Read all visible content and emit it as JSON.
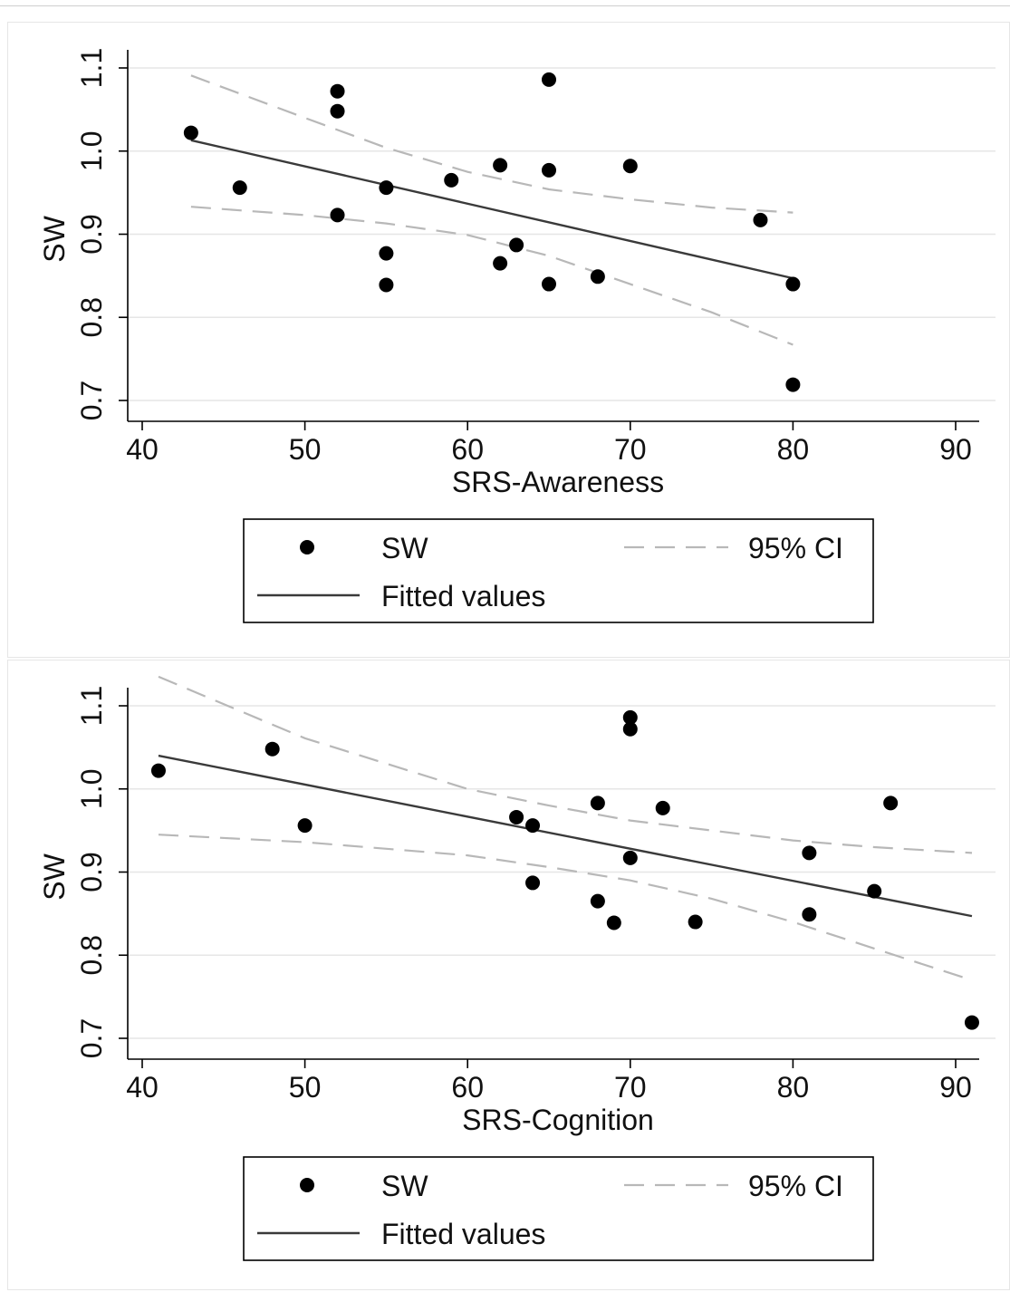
{
  "colors": {
    "points": "#000000",
    "fit_line": "#3a3a3a",
    "ci_line": "#b8b8b8",
    "grid": "#e6e6e6",
    "axis": "#000000",
    "legend_border": "#000000"
  },
  "chart_data": [
    {
      "type": "scatter",
      "title": "",
      "xlabel": "SRS-Awareness",
      "ylabel": "SW",
      "xlim": [
        40,
        90
      ],
      "ylim": [
        0.7,
        1.1
      ],
      "xticks": [
        40,
        50,
        60,
        70,
        80,
        90
      ],
      "yticks": [
        0.7,
        0.8,
        0.9,
        1.0,
        1.1
      ],
      "ytick_labels": [
        "0.7",
        "0.8",
        "0.9",
        "1.0",
        "1.1"
      ],
      "grid": true,
      "legend_placement": "bottom",
      "legend": {
        "points": "SW",
        "ci": "95% CI",
        "fit": "Fitted values"
      },
      "points": [
        {
          "x": 43,
          "y": 1.022
        },
        {
          "x": 46,
          "y": 0.956
        },
        {
          "x": 52,
          "y": 1.072
        },
        {
          "x": 52,
          "y": 1.048
        },
        {
          "x": 52,
          "y": 0.923
        },
        {
          "x": 55,
          "y": 0.956
        },
        {
          "x": 55,
          "y": 0.877
        },
        {
          "x": 55,
          "y": 0.839
        },
        {
          "x": 59,
          "y": 0.965
        },
        {
          "x": 62,
          "y": 0.983
        },
        {
          "x": 62,
          "y": 0.865
        },
        {
          "x": 63,
          "y": 0.887
        },
        {
          "x": 65,
          "y": 1.086
        },
        {
          "x": 65,
          "y": 0.977
        },
        {
          "x": 65,
          "y": 0.84
        },
        {
          "x": 68,
          "y": 0.849
        },
        {
          "x": 70,
          "y": 0.982
        },
        {
          "x": 78,
          "y": 0.917
        },
        {
          "x": 80,
          "y": 0.84
        },
        {
          "x": 80,
          "y": 0.719
        }
      ],
      "fit": [
        {
          "x": 43,
          "y": 1.013
        },
        {
          "x": 80,
          "y": 0.847
        }
      ],
      "ci_upper": [
        {
          "x": 43,
          "y": 1.091
        },
        {
          "x": 50,
          "y": 1.04
        },
        {
          "x": 55,
          "y": 1.004
        },
        {
          "x": 60,
          "y": 0.975
        },
        {
          "x": 65,
          "y": 0.954
        },
        {
          "x": 70,
          "y": 0.942
        },
        {
          "x": 75,
          "y": 0.932
        },
        {
          "x": 80,
          "y": 0.926
        }
      ],
      "ci_lower": [
        {
          "x": 43,
          "y": 0.933
        },
        {
          "x": 50,
          "y": 0.923
        },
        {
          "x": 55,
          "y": 0.913
        },
        {
          "x": 60,
          "y": 0.899
        },
        {
          "x": 65,
          "y": 0.874
        },
        {
          "x": 70,
          "y": 0.84
        },
        {
          "x": 75,
          "y": 0.806
        },
        {
          "x": 80,
          "y": 0.767
        }
      ]
    },
    {
      "type": "scatter",
      "title": "",
      "xlabel": "SRS-Cognition",
      "ylabel": "SW",
      "xlim": [
        40,
        90
      ],
      "ylim": [
        0.7,
        1.1
      ],
      "xticks": [
        40,
        50,
        60,
        70,
        80,
        90
      ],
      "yticks": [
        0.7,
        0.8,
        0.9,
        1.0,
        1.1
      ],
      "ytick_labels": [
        "0.7",
        "0.8",
        "0.9",
        "1.0",
        "1.1"
      ],
      "grid": true,
      "legend_placement": "bottom",
      "legend": {
        "points": "SW",
        "ci": "95% CI",
        "fit": "Fitted values"
      },
      "points": [
        {
          "x": 41,
          "y": 1.022
        },
        {
          "x": 48,
          "y": 1.048
        },
        {
          "x": 50,
          "y": 0.956
        },
        {
          "x": 63,
          "y": 0.966
        },
        {
          "x": 64,
          "y": 0.956
        },
        {
          "x": 64,
          "y": 0.887
        },
        {
          "x": 68,
          "y": 0.983
        },
        {
          "x": 68,
          "y": 0.865
        },
        {
          "x": 69,
          "y": 0.839
        },
        {
          "x": 70,
          "y": 1.086
        },
        {
          "x": 70,
          "y": 1.072
        },
        {
          "x": 70,
          "y": 0.917
        },
        {
          "x": 72,
          "y": 0.977
        },
        {
          "x": 74,
          "y": 0.84
        },
        {
          "x": 81,
          "y": 0.923
        },
        {
          "x": 81,
          "y": 0.849
        },
        {
          "x": 85,
          "y": 0.877
        },
        {
          "x": 86,
          "y": 0.983
        },
        {
          "x": 91,
          "y": 0.719
        }
      ],
      "fit": [
        {
          "x": 41,
          "y": 1.04
        },
        {
          "x": 91,
          "y": 0.847
        }
      ],
      "ci_upper": [
        {
          "x": 41,
          "y": 1.135
        },
        {
          "x": 50,
          "y": 1.061
        },
        {
          "x": 60,
          "y": 1.0
        },
        {
          "x": 65,
          "y": 0.98
        },
        {
          "x": 70,
          "y": 0.962
        },
        {
          "x": 75,
          "y": 0.95
        },
        {
          "x": 80,
          "y": 0.938
        },
        {
          "x": 85,
          "y": 0.93
        },
        {
          "x": 91,
          "y": 0.923
        }
      ],
      "ci_lower": [
        {
          "x": 41,
          "y": 0.945
        },
        {
          "x": 50,
          "y": 0.936
        },
        {
          "x": 60,
          "y": 0.92
        },
        {
          "x": 65,
          "y": 0.906
        },
        {
          "x": 70,
          "y": 0.89
        },
        {
          "x": 75,
          "y": 0.868
        },
        {
          "x": 80,
          "y": 0.84
        },
        {
          "x": 85,
          "y": 0.808
        },
        {
          "x": 91,
          "y": 0.77
        }
      ]
    }
  ]
}
